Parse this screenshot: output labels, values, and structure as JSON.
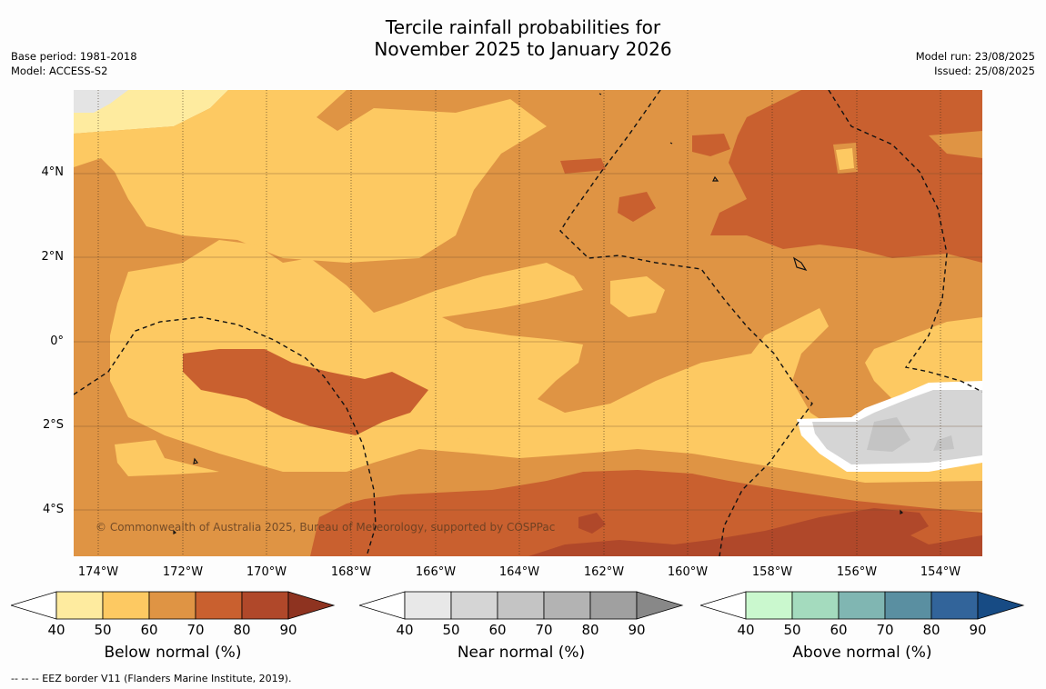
{
  "title_line1": "Tercile rainfall probabilities for",
  "title_line2": "November 2025 to January 2026",
  "meta_left": {
    "base_period": "Base period: 1981-2018",
    "model": "Model: ACCESS-S2"
  },
  "meta_right": {
    "model_run": "Model run: 23/08/2025",
    "issued": "Issued: 25/08/2025"
  },
  "copyright": "© Commonwealth of Australia 2025, Bureau of Meteorology, supported by COSPPac",
  "lat_labels": [
    "4°N",
    "2°N",
    "0°",
    "2°S",
    "4°S"
  ],
  "lon_labels": [
    "174°W",
    "172°W",
    "170°W",
    "168°W",
    "166°W",
    "164°W",
    "162°W",
    "160°W",
    "158°W",
    "156°W",
    "154°W"
  ],
  "legends": [
    {
      "title": "Below normal (%)",
      "ticks": [
        "40",
        "50",
        "60",
        "70",
        "80",
        "90"
      ],
      "colors": [
        "#ffffff",
        "#feeb9f",
        "#fdc962",
        "#df9444",
        "#c9602f",
        "#b0482a",
        "#8e3320"
      ]
    },
    {
      "title": "Near normal (%)",
      "ticks": [
        "40",
        "50",
        "60",
        "70",
        "80",
        "90"
      ],
      "colors": [
        "#ffffff",
        "#e8e8e8",
        "#d5d5d5",
        "#c4c4c4",
        "#b3b3b3",
        "#a0a0a0",
        "#888888"
      ]
    },
    {
      "title": "Above normal (%)",
      "ticks": [
        "40",
        "50",
        "60",
        "70",
        "80",
        "90"
      ],
      "colors": [
        "#ffffff",
        "#caf8ce",
        "#a4dbbe",
        "#80b6b2",
        "#5a8fa1",
        "#32649a",
        "#174b84"
      ]
    }
  ],
  "footnote": "--  --  -- EEZ border V11 (Flanders Marine Institute, 2019).",
  "map_colors": {
    "c50": "#feeb9f",
    "c60": "#fdc962",
    "c70": "#df9444",
    "c80": "#c9602f",
    "c90": "#b0482a",
    "near60": "#d5d5d5",
    "near70": "#c4c4c4",
    "nodata": "#e4e4e4"
  }
}
